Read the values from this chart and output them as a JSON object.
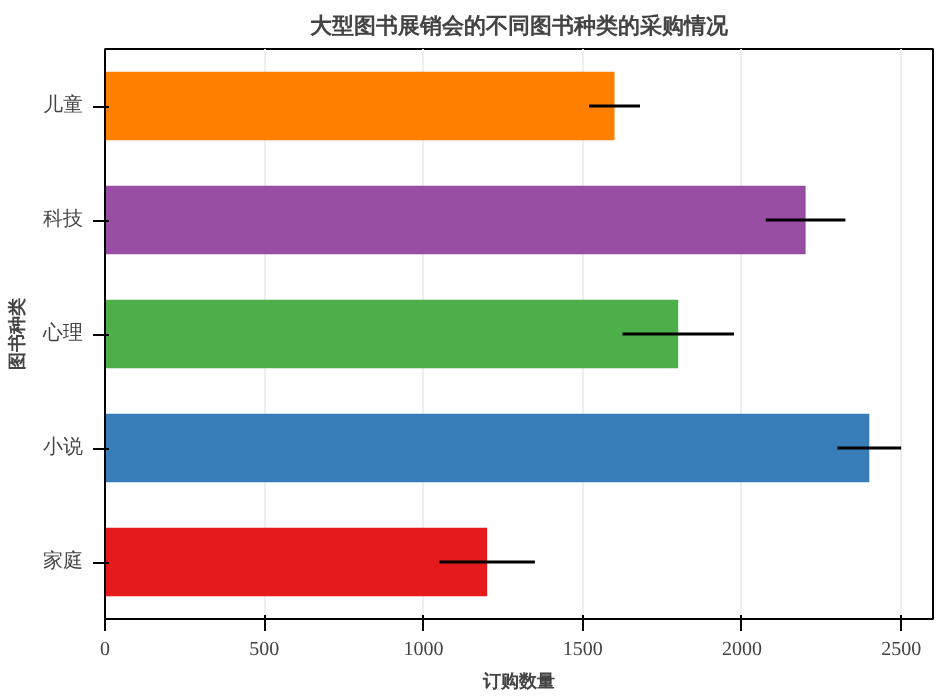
{
  "chart_data": {
    "type": "bar",
    "orientation": "horizontal",
    "title": "大型图书展销会的不同图书种类的采购情况",
    "xlabel": "订购数量",
    "ylabel": "图书种类",
    "categories": [
      "儿童",
      "科技",
      "心理",
      "小说",
      "家庭"
    ],
    "values": [
      1600,
      2200,
      1800,
      2400,
      1200
    ],
    "errors": [
      80,
      125,
      175,
      100,
      150
    ],
    "colors": [
      "#ff7f00",
      "#984ea3",
      "#4daf4a",
      "#377eb8",
      "#e41a1c"
    ],
    "xlim": [
      0,
      2600
    ],
    "xticks": [
      0,
      500,
      1000,
      1500,
      2000,
      2500
    ],
    "grid": "x"
  }
}
